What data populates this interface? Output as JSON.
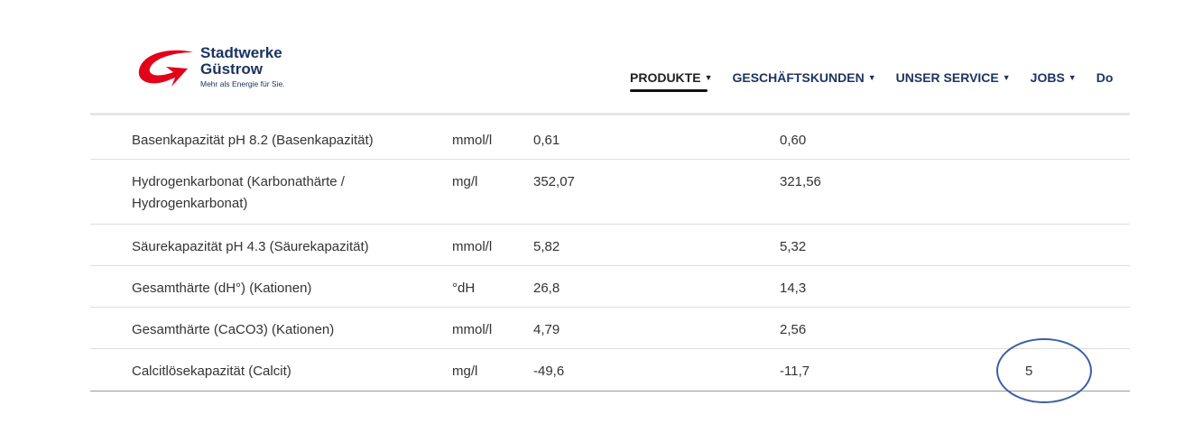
{
  "header": {
    "logo": {
      "line1": "Stadtwerke",
      "line2": "Güstrow",
      "tagline": "Mehr als Energie für Sie.",
      "color": "#e2001a"
    },
    "nav": [
      {
        "label": "PRODUKTE",
        "active": true
      },
      {
        "label": "GESCHÄFTSKUNDEN"
      },
      {
        "label": "UNSER SERVICE"
      },
      {
        "label": "JOBS"
      },
      {
        "label": "Do"
      }
    ]
  },
  "table": {
    "rows": [
      [
        "Basenkapazität pH 8.2 (Basenkapazität)",
        "mmol/l",
        "0,61",
        "0,60",
        ""
      ],
      [
        "Hydrogenkarbonat (Karbonathärte / Hydrogenkarbonat)",
        "mg/l",
        "352,07",
        "321,56",
        ""
      ],
      [
        "Säurekapazität pH 4.3 (Säurekapazität)",
        "mmol/l",
        "5,82",
        "5,32",
        ""
      ],
      [
        "Gesamthärte (dH°) (Kationen)",
        "°dH",
        "26,8",
        "14,3",
        ""
      ],
      [
        "Gesamthärte (CaCO3) (Kationen)",
        "mmol/l",
        "4,79",
        "2,56",
        ""
      ],
      [
        "Calcitlösekapazität (Calcit)",
        "mg/l",
        "-49,6",
        "-11,7",
        "5"
      ]
    ]
  },
  "annotation": {
    "color": "#3b5fa6"
  }
}
